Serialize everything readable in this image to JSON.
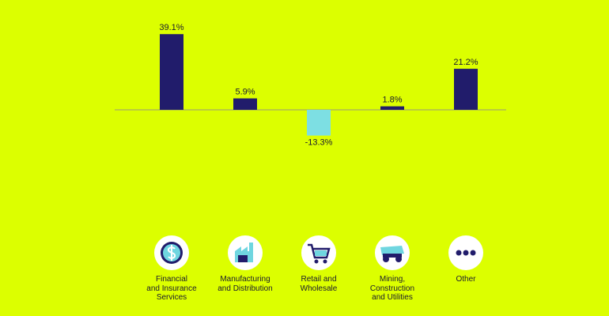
{
  "chart_data": {
    "type": "bar",
    "categories": [
      "Financial\nand Insurance\nServices",
      "Manufacturing\nand Distribution",
      "Retail and\nWholesale",
      "Mining,\nConstruction\nand Utilities",
      "Other"
    ],
    "values": [
      39.1,
      5.9,
      -13.3,
      1.8,
      21.2
    ],
    "value_labels": [
      "39.1%",
      "5.9%",
      "-13.3%",
      "1.8%",
      "21.2%"
    ],
    "colors": [
      "#211c6b",
      "#211c6b",
      "#7ddfe3",
      "#211c6b",
      "#211c6b"
    ],
    "ylim": [
      -60,
      40
    ]
  }
}
